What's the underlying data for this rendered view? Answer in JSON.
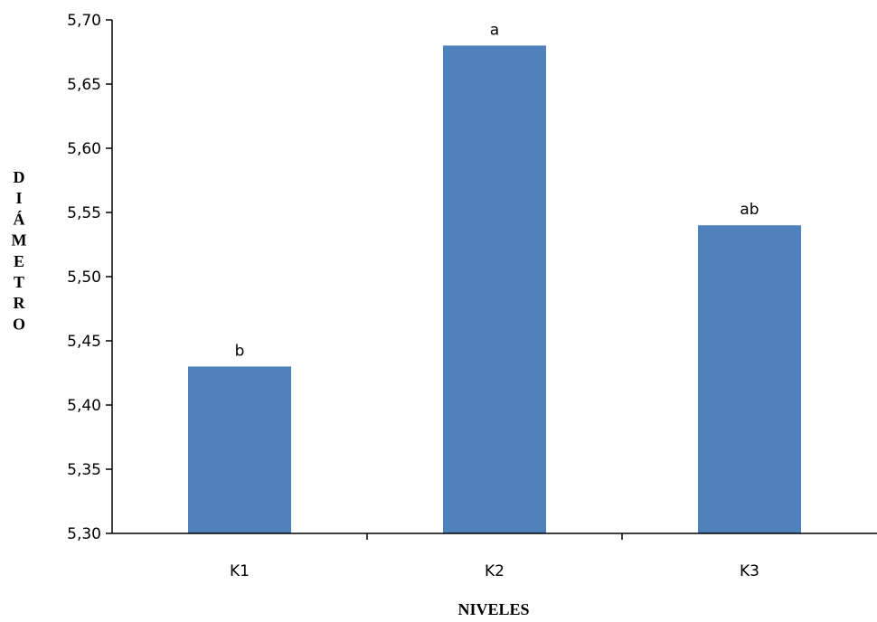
{
  "chart_data": {
    "type": "bar",
    "categories": [
      "K1",
      "K2",
      "K3"
    ],
    "values": [
      5.43,
      5.68,
      5.54
    ],
    "data_labels": [
      "b",
      "a",
      "ab"
    ],
    "xlabel": "NIVELES",
    "ylabel": "DIÁMETRO",
    "ylim": [
      5.3,
      5.7
    ],
    "yticks": [
      "5,30",
      "5,35",
      "5,40",
      "5,45",
      "5,50",
      "5,55",
      "5,60",
      "5,65",
      "5,70"
    ],
    "grid": false,
    "legend": "none",
    "bar_color": "#4F81BD"
  }
}
